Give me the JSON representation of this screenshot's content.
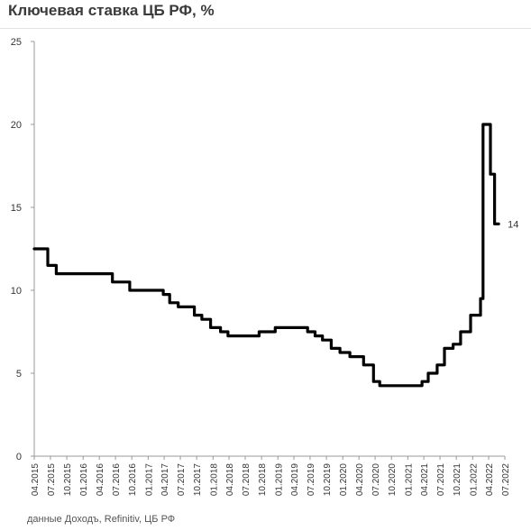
{
  "header": {
    "title": "Ключевая ставка ЦБ РФ, %"
  },
  "footer": {
    "source": "данные Доходъ, Refinitiv, ЦБ РФ"
  },
  "chart_data": {
    "type": "line",
    "title": "Ключевая ставка ЦБ РФ, %",
    "xlabel": "",
    "ylabel": "",
    "ylim": [
      0,
      25
    ],
    "yticks": [
      0,
      5,
      10,
      15,
      20,
      25
    ],
    "grid": false,
    "legend": "none",
    "line_color": "#000000",
    "xtick_labels": [
      "04.2015",
      "07.2015",
      "10.2015",
      "01.2016",
      "04.2016",
      "07.2016",
      "10.2016",
      "01.2017",
      "04.2017",
      "07.2017",
      "10.2017",
      "01.2018",
      "04.2018",
      "07.2018",
      "10.2018",
      "01.2019",
      "04.2019",
      "07.2019",
      "10.2019",
      "01.2020",
      "04.2020",
      "07.2020",
      "10.2020",
      "01.2021",
      "04.2021",
      "07.2021",
      "10.2021",
      "01.2022",
      "04.2022",
      "07.2022"
    ],
    "end_label": "14",
    "series": [
      {
        "x": [
          "2015-04-01",
          "2015-05-05",
          "2015-06-16",
          "2015-08-03",
          "2016-06-14",
          "2016-09-19",
          "2017-03-27",
          "2017-05-02",
          "2017-06-19",
          "2017-09-18",
          "2017-10-30",
          "2017-12-18",
          "2018-02-12",
          "2018-03-26",
          "2018-09-17",
          "2018-12-17",
          "2019-06-17",
          "2019-07-29",
          "2019-09-09",
          "2019-10-28",
          "2019-12-16",
          "2020-02-10",
          "2020-04-27",
          "2020-06-22",
          "2020-07-27",
          "2021-03-22",
          "2021-04-26",
          "2021-06-15",
          "2021-07-26",
          "2021-09-13",
          "2021-10-25",
          "2021-12-20",
          "2022-02-14",
          "2022-02-28",
          "2022-04-11",
          "2022-05-04",
          "2022-05-27"
        ],
        "y": [
          12.5,
          12.5,
          11.5,
          11,
          10.5,
          10,
          9.75,
          9.25,
          9,
          8.5,
          8.25,
          7.75,
          7.5,
          7.25,
          7.5,
          7.75,
          7.5,
          7.25,
          7,
          6.5,
          6.25,
          6,
          5.5,
          4.5,
          4.25,
          4.5,
          5,
          5.5,
          6.5,
          6.75,
          7.5,
          8.5,
          9.5,
          20,
          17,
          14,
          14
        ]
      }
    ]
  }
}
